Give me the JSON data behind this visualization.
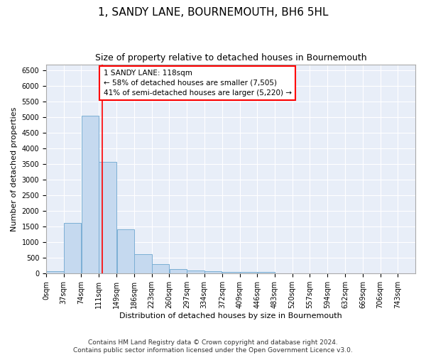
{
  "title": "1, SANDY LANE, BOURNEMOUTH, BH6 5HL",
  "subtitle": "Size of property relative to detached houses in Bournemouth",
  "xlabel": "Distribution of detached houses by size in Bournemouth",
  "ylabel": "Number of detached properties",
  "footer_line1": "Contains HM Land Registry data © Crown copyright and database right 2024.",
  "footer_line2": "Contains public sector information licensed under the Open Government Licence v3.0.",
  "annotation_line1": "1 SANDY LANE: 118sqm",
  "annotation_line2": "← 58% of detached houses are smaller (7,505)",
  "annotation_line3": "41% of semi-detached houses are larger (5,220) →",
  "property_size_sqm": 118,
  "bar_color": "#c5d9ef",
  "bar_edge_color": "#7bafd4",
  "vline_color": "red",
  "annotation_box_color": "red",
  "background_color": "#e8eef8",
  "grid_color": "#ffffff",
  "categories": [
    "0sqm",
    "37sqm",
    "74sqm",
    "111sqm",
    "149sqm",
    "186sqm",
    "223sqm",
    "260sqm",
    "297sqm",
    "334sqm",
    "372sqm",
    "409sqm",
    "446sqm",
    "483sqm",
    "520sqm",
    "557sqm",
    "594sqm",
    "632sqm",
    "669sqm",
    "706sqm",
    "743sqm"
  ],
  "bin_edges": [
    0,
    37,
    74,
    111,
    149,
    186,
    223,
    260,
    297,
    334,
    372,
    409,
    446,
    483,
    520,
    557,
    594,
    632,
    669,
    706,
    743,
    780
  ],
  "values": [
    75,
    1625,
    5050,
    3575,
    1425,
    625,
    290,
    140,
    95,
    70,
    55,
    50,
    50,
    0,
    0,
    0,
    0,
    0,
    0,
    0,
    0
  ],
  "ylim": [
    0,
    6700
  ],
  "yticks": [
    0,
    500,
    1000,
    1500,
    2000,
    2500,
    3000,
    3500,
    4000,
    4500,
    5000,
    5500,
    6000,
    6500
  ],
  "title_fontsize": 11,
  "subtitle_fontsize": 9,
  "axis_label_fontsize": 8,
  "tick_fontsize": 7,
  "annotation_fontsize": 7.5,
  "footer_fontsize": 6.5
}
